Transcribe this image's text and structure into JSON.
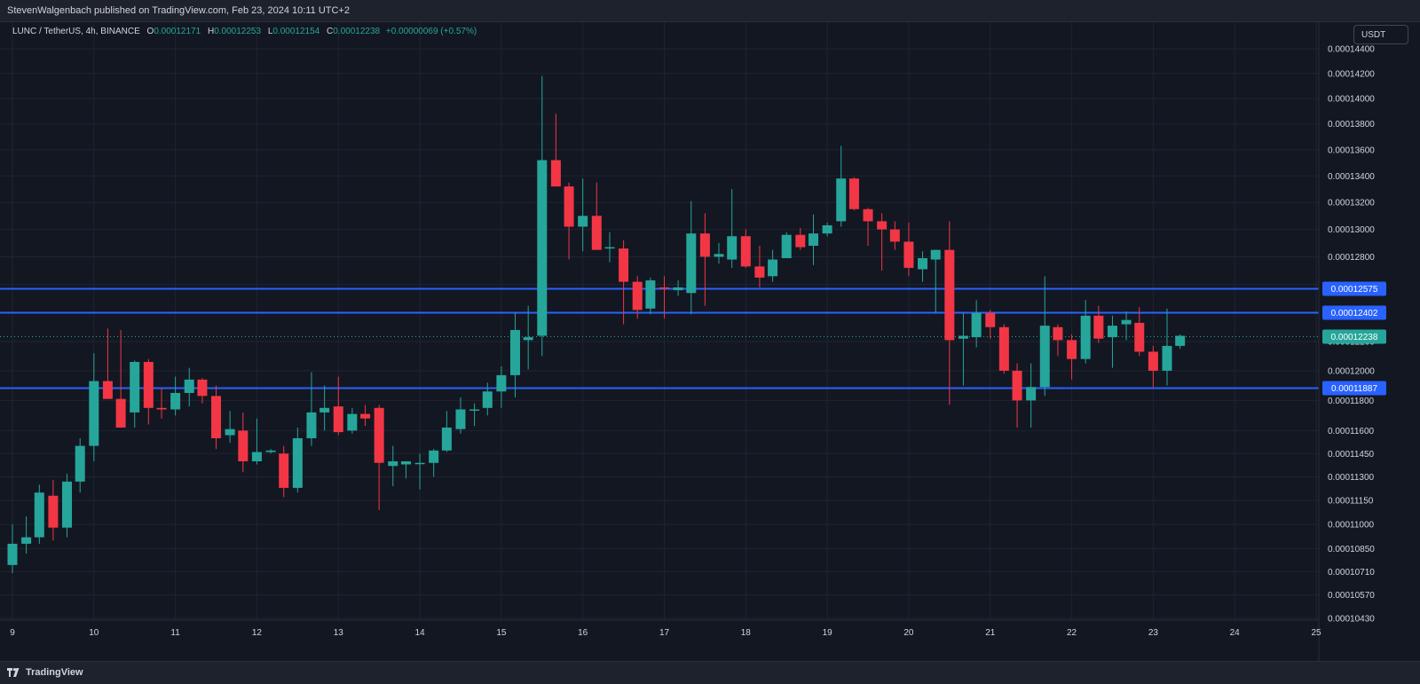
{
  "header": {
    "published_text": "StevenWalgenbach published on TradingView.com, Feb 23, 2024 10:11 UTC+2"
  },
  "legend": {
    "symbol": "LUNC / TetherUS, 4h, BINANCE",
    "open_label": "O",
    "open": "0.00012171",
    "high_label": "H",
    "high": "0.00012253",
    "low_label": "L",
    "low": "0.00012154",
    "close_label": "C",
    "close": "0.00012238",
    "change": "+0.00000069 (+0.57%)"
  },
  "toolbar": {
    "currency": "USDT"
  },
  "footer": {
    "brand": "TradingView"
  },
  "colors": {
    "up": "#26a69a",
    "down": "#f23645",
    "hline": "#2962ff",
    "background": "#131722"
  },
  "chart_data": {
    "type": "candlestick",
    "symbol": "LUNC / TetherUS",
    "interval": "4h",
    "exchange": "BINANCE",
    "xlabel": "",
    "ylabel": "",
    "x_ticks": [
      "9",
      "10",
      "11",
      "12",
      "13",
      "14",
      "15",
      "16",
      "17",
      "18",
      "19",
      "20",
      "21",
      "22",
      "23",
      "24",
      "25"
    ],
    "y_ticks": [
      "0.00014400",
      "0.00014200",
      "0.00014000",
      "0.00013800",
      "0.00013600",
      "0.00013400",
      "0.00013200",
      "0.00013000",
      "0.00012800",
      "0.00012600",
      "0.00012400",
      "0.00012200",
      "0.00012000",
      "0.00011800",
      "0.00011600",
      "0.00011450",
      "0.00011300",
      "0.00011150",
      "0.00011000",
      "0.00010850",
      "0.00010710",
      "0.00010570",
      "0.00010430"
    ],
    "scale": "log",
    "grid": true,
    "horizontal_lines": [
      "0.00012575",
      "0.00012402",
      "0.00011887"
    ],
    "last_price": "0.00012238",
    "candles": [
      {
        "x": 9.0,
        "o": 0.0001075,
        "h": 0.00011,
        "l": 0.000107,
        "c": 0.0001088
      },
      {
        "x": 9.17,
        "o": 0.0001088,
        "h": 0.0001105,
        "l": 0.0001082,
        "c": 0.0001092
      },
      {
        "x": 9.33,
        "o": 0.0001092,
        "h": 0.0001125,
        "l": 0.0001088,
        "c": 0.000112
      },
      {
        "x": 9.5,
        "o": 0.0001118,
        "h": 0.0001128,
        "l": 0.000109,
        "c": 0.0001098
      },
      {
        "x": 9.67,
        "o": 0.0001098,
        "h": 0.0001132,
        "l": 0.0001092,
        "c": 0.0001127
      },
      {
        "x": 9.83,
        "o": 0.0001127,
        "h": 0.0001155,
        "l": 0.000112,
        "c": 0.000115
      },
      {
        "x": 10.0,
        "o": 0.000115,
        "h": 0.0001212,
        "l": 0.000114,
        "c": 0.0001193
      },
      {
        "x": 10.17,
        "o": 0.0001193,
        "h": 0.0001229,
        "l": 0.0001182,
        "c": 0.0001181
      },
      {
        "x": 10.33,
        "o": 0.0001181,
        "h": 0.0001228,
        "l": 0.0001162,
        "c": 0.0001162
      },
      {
        "x": 10.5,
        "o": 0.0001172,
        "h": 0.0001207,
        "l": 0.0001162,
        "c": 0.0001206
      },
      {
        "x": 10.67,
        "o": 0.0001206,
        "h": 0.0001208,
        "l": 0.0001164,
        "c": 0.0001175
      },
      {
        "x": 10.83,
        "o": 0.0001175,
        "h": 0.0001188,
        "l": 0.0001168,
        "c": 0.0001174
      },
      {
        "x": 11.0,
        "o": 0.0001174,
        "h": 0.0001196,
        "l": 0.000117,
        "c": 0.0001185
      },
      {
        "x": 11.17,
        "o": 0.0001185,
        "h": 0.0001202,
        "l": 0.0001176,
        "c": 0.0001194
      },
      {
        "x": 11.33,
        "o": 0.0001194,
        "h": 0.0001195,
        "l": 0.0001178,
        "c": 0.0001183
      },
      {
        "x": 11.5,
        "o": 0.0001183,
        "h": 0.000119,
        "l": 0.0001148,
        "c": 0.0001155
      },
      {
        "x": 11.67,
        "o": 0.0001157,
        "h": 0.0001173,
        "l": 0.0001152,
        "c": 0.0001161
      },
      {
        "x": 11.83,
        "o": 0.000116,
        "h": 0.0001172,
        "l": 0.0001133,
        "c": 0.000114
      },
      {
        "x": 12.0,
        "o": 0.000114,
        "h": 0.0001168,
        "l": 0.0001138,
        "c": 0.0001146
      },
      {
        "x": 12.17,
        "o": 0.0001146,
        "h": 0.0001148,
        "l": 0.0001145,
        "c": 0.0001147
      },
      {
        "x": 12.33,
        "o": 0.0001145,
        "h": 0.000115,
        "l": 0.0001117,
        "c": 0.0001123
      },
      {
        "x": 12.5,
        "o": 0.0001123,
        "h": 0.0001162,
        "l": 0.000112,
        "c": 0.0001155
      },
      {
        "x": 12.67,
        "o": 0.0001155,
        "h": 0.0001199,
        "l": 0.000115,
        "c": 0.0001172
      },
      {
        "x": 12.83,
        "o": 0.0001172,
        "h": 0.000119,
        "l": 0.000116,
        "c": 0.0001175
      },
      {
        "x": 13.0,
        "o": 0.0001176,
        "h": 0.0001196,
        "l": 0.0001157,
        "c": 0.0001159
      },
      {
        "x": 13.17,
        "o": 0.000116,
        "h": 0.0001175,
        "l": 0.0001158,
        "c": 0.0001171
      },
      {
        "x": 13.33,
        "o": 0.0001171,
        "h": 0.0001177,
        "l": 0.0001163,
        "c": 0.0001168
      },
      {
        "x": 13.5,
        "o": 0.0001175,
        "h": 0.0001177,
        "l": 0.0001109,
        "c": 0.0001139
      },
      {
        "x": 13.67,
        "o": 0.0001137,
        "h": 0.000115,
        "l": 0.0001124,
        "c": 0.000114
      },
      {
        "x": 13.83,
        "o": 0.0001138,
        "h": 0.000114,
        "l": 0.0001129,
        "c": 0.000114
      },
      {
        "x": 14.0,
        "o": 0.0001139,
        "h": 0.0001145,
        "l": 0.0001122,
        "c": 0.0001139
      },
      {
        "x": 14.17,
        "o": 0.0001139,
        "h": 0.0001148,
        "l": 0.000113,
        "c": 0.0001147
      },
      {
        "x": 14.33,
        "o": 0.0001147,
        "h": 0.0001173,
        "l": 0.0001146,
        "c": 0.0001162
      },
      {
        "x": 14.5,
        "o": 0.0001161,
        "h": 0.0001182,
        "l": 0.0001158,
        "c": 0.0001174
      },
      {
        "x": 14.67,
        "o": 0.0001174,
        "h": 0.0001178,
        "l": 0.0001163,
        "c": 0.0001174
      },
      {
        "x": 14.83,
        "o": 0.0001175,
        "h": 0.0001192,
        "l": 0.000117,
        "c": 0.0001186
      },
      {
        "x": 15.0,
        "o": 0.0001186,
        "h": 0.0001203,
        "l": 0.0001175,
        "c": 0.0001197
      },
      {
        "x": 15.17,
        "o": 0.0001197,
        "h": 0.000124,
        "l": 0.0001182,
        "c": 0.0001228
      },
      {
        "x": 15.33,
        "o": 0.0001221,
        "h": 0.0001245,
        "l": 0.0001201,
        "c": 0.0001223
      },
      {
        "x": 15.5,
        "o": 0.0001224,
        "h": 0.0001418,
        "l": 0.000121,
        "c": 0.0001352
      },
      {
        "x": 15.67,
        "o": 0.0001352,
        "h": 0.0001388,
        "l": 0.0001332,
        "c": 0.0001332
      },
      {
        "x": 15.83,
        "o": 0.0001332,
        "h": 0.0001335,
        "l": 0.0001278,
        "c": 0.0001302
      },
      {
        "x": 16.0,
        "o": 0.0001302,
        "h": 0.0001338,
        "l": 0.0001284,
        "c": 0.000131
      },
      {
        "x": 16.17,
        "o": 0.000131,
        "h": 0.0001335,
        "l": 0.0001286,
        "c": 0.0001285
      },
      {
        "x": 16.33,
        "o": 0.0001286,
        "h": 0.0001298,
        "l": 0.0001276,
        "c": 0.0001287
      },
      {
        "x": 16.5,
        "o": 0.0001286,
        "h": 0.0001292,
        "l": 0.0001232,
        "c": 0.0001262
      },
      {
        "x": 16.67,
        "o": 0.0001262,
        "h": 0.0001266,
        "l": 0.0001236,
        "c": 0.0001242
      },
      {
        "x": 16.83,
        "o": 0.0001243,
        "h": 0.0001265,
        "l": 0.0001239,
        "c": 0.0001263
      },
      {
        "x": 17.0,
        "o": 0.0001258,
        "h": 0.0001266,
        "l": 0.0001236,
        "c": 0.0001257
      },
      {
        "x": 17.17,
        "o": 0.0001256,
        "h": 0.0001263,
        "l": 0.0001252,
        "c": 0.0001258
      },
      {
        "x": 17.33,
        "o": 0.0001254,
        "h": 0.0001321,
        "l": 0.0001239,
        "c": 0.0001297
      },
      {
        "x": 17.5,
        "o": 0.0001297,
        "h": 0.0001312,
        "l": 0.0001245,
        "c": 0.000128
      },
      {
        "x": 17.67,
        "o": 0.000128,
        "h": 0.000129,
        "l": 0.0001275,
        "c": 0.0001282
      },
      {
        "x": 17.83,
        "o": 0.0001278,
        "h": 0.000133,
        "l": 0.0001272,
        "c": 0.0001295
      },
      {
        "x": 18.0,
        "o": 0.0001295,
        "h": 0.00013,
        "l": 0.0001272,
        "c": 0.0001273
      },
      {
        "x": 18.17,
        "o": 0.0001273,
        "h": 0.0001288,
        "l": 0.0001258,
        "c": 0.0001265
      },
      {
        "x": 18.33,
        "o": 0.0001266,
        "h": 0.0001285,
        "l": 0.0001262,
        "c": 0.0001278
      },
      {
        "x": 18.5,
        "o": 0.0001279,
        "h": 0.0001298,
        "l": 0.0001279,
        "c": 0.0001296
      },
      {
        "x": 18.67,
        "o": 0.0001296,
        "h": 0.0001301,
        "l": 0.0001285,
        "c": 0.0001287
      },
      {
        "x": 18.83,
        "o": 0.0001288,
        "h": 0.0001311,
        "l": 0.0001274,
        "c": 0.0001297
      },
      {
        "x": 19.0,
        "o": 0.0001297,
        "h": 0.0001305,
        "l": 0.0001295,
        "c": 0.0001303
      },
      {
        "x": 19.17,
        "o": 0.0001306,
        "h": 0.0001363,
        "l": 0.0001302,
        "c": 0.0001338
      },
      {
        "x": 19.33,
        "o": 0.0001338,
        "h": 0.0001339,
        "l": 0.0001314,
        "c": 0.0001315
      },
      {
        "x": 19.5,
        "o": 0.0001315,
        "h": 0.0001316,
        "l": 0.0001288,
        "c": 0.0001306
      },
      {
        "x": 19.67,
        "o": 0.0001306,
        "h": 0.0001312,
        "l": 0.000127,
        "c": 0.00013
      },
      {
        "x": 19.83,
        "o": 0.00013,
        "h": 0.0001306,
        "l": 0.0001285,
        "c": 0.0001291
      },
      {
        "x": 20.0,
        "o": 0.0001291,
        "h": 0.0001305,
        "l": 0.0001266,
        "c": 0.0001272
      },
      {
        "x": 20.17,
        "o": 0.0001271,
        "h": 0.0001284,
        "l": 0.0001262,
        "c": 0.0001279
      },
      {
        "x": 20.33,
        "o": 0.0001278,
        "h": 0.0001285,
        "l": 0.000124,
        "c": 0.0001285
      },
      {
        "x": 20.5,
        "o": 0.0001285,
        "h": 0.0001306,
        "l": 0.0001177,
        "c": 0.0001221
      },
      {
        "x": 20.67,
        "o": 0.0001222,
        "h": 0.000124,
        "l": 0.000119,
        "c": 0.0001224
      },
      {
        "x": 20.83,
        "o": 0.0001223,
        "h": 0.0001249,
        "l": 0.0001216,
        "c": 0.000124
      },
      {
        "x": 21.0,
        "o": 0.000124,
        "h": 0.0001242,
        "l": 0.0001222,
        "c": 0.000123
      },
      {
        "x": 21.17,
        "o": 0.000123,
        "h": 0.0001232,
        "l": 0.0001198,
        "c": 0.00012
      },
      {
        "x": 21.33,
        "o": 0.00012,
        "h": 0.0001205,
        "l": 0.0001162,
        "c": 0.000118
      },
      {
        "x": 21.5,
        "o": 0.000118,
        "h": 0.0001205,
        "l": 0.0001162,
        "c": 0.0001189
      },
      {
        "x": 21.67,
        "o": 0.0001189,
        "h": 0.0001266,
        "l": 0.0001183,
        "c": 0.0001231
      },
      {
        "x": 21.83,
        "o": 0.000123,
        "h": 0.0001232,
        "l": 0.000121,
        "c": 0.0001221
      },
      {
        "x": 22.0,
        "o": 0.0001221,
        "h": 0.0001225,
        "l": 0.0001194,
        "c": 0.0001208
      },
      {
        "x": 22.17,
        "o": 0.0001208,
        "h": 0.0001249,
        "l": 0.0001205,
        "c": 0.0001238
      },
      {
        "x": 22.33,
        "o": 0.0001238,
        "h": 0.0001245,
        "l": 0.0001219,
        "c": 0.0001222
      },
      {
        "x": 22.5,
        "o": 0.0001223,
        "h": 0.0001238,
        "l": 0.0001202,
        "c": 0.0001231
      },
      {
        "x": 22.67,
        "o": 0.0001232,
        "h": 0.0001241,
        "l": 0.0001221,
        "c": 0.0001235
      },
      {
        "x": 22.83,
        "o": 0.0001233,
        "h": 0.0001244,
        "l": 0.000121,
        "c": 0.0001213
      },
      {
        "x": 23.0,
        "o": 0.0001213,
        "h": 0.0001217,
        "l": 0.0001189,
        "c": 0.00012
      },
      {
        "x": 23.17,
        "o": 0.00012,
        "h": 0.0001243,
        "l": 0.000119,
        "c": 0.0001217
      },
      {
        "x": 23.33,
        "o": 0.0001217,
        "h": 0.0001225,
        "l": 0.0001215,
        "c": 0.0001224
      }
    ]
  }
}
